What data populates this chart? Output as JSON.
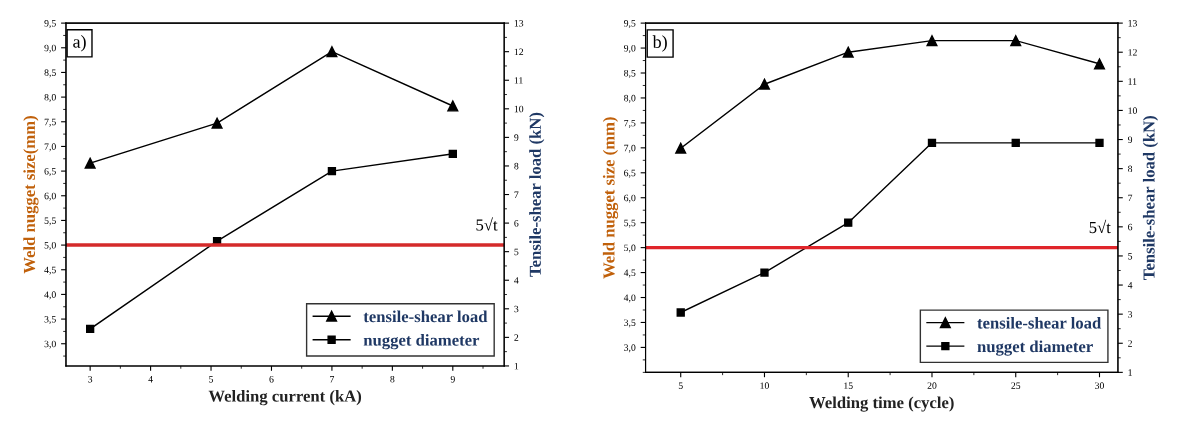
{
  "chart_data": [
    {
      "type": "line",
      "xlabel": "Welding current (kA)",
      "ylabel": "Weld nugget size(mm)",
      "y2label": "Tensile-shear load (kN)",
      "annotations": [
        "a)"
      ],
      "xlim": [
        2.6,
        9.85
      ],
      "xticks": [
        3,
        4,
        5,
        6,
        7,
        8,
        9
      ],
      "ylim": [
        2.55,
        9.5
      ],
      "yticks": [
        {
          "value": 3.0,
          "label": "3,0"
        },
        {
          "value": 3.5,
          "label": "3,5"
        },
        {
          "value": 4.0,
          "label": "4,0"
        },
        {
          "value": 4.5,
          "label": "4,5"
        },
        {
          "value": 5.0,
          "label": "5,0"
        },
        {
          "value": 5.5,
          "label": "5,5"
        },
        {
          "value": 6.0,
          "label": "6,0"
        },
        {
          "value": 6.5,
          "label": "6,5"
        },
        {
          "value": 7.0,
          "label": "7,0"
        },
        {
          "value": 7.5,
          "label": "7,5"
        },
        {
          "value": 8.0,
          "label": "8,0"
        },
        {
          "value": 8.5,
          "label": "8,5"
        },
        {
          "value": 9.0,
          "label": "9,0"
        },
        {
          "value": 9.5,
          "label": "9,5"
        }
      ],
      "y2lim": [
        1,
        13
      ],
      "y2ticks": [
        1,
        2,
        3,
        4,
        5,
        6,
        7,
        8,
        9,
        10,
        11,
        12,
        13
      ],
      "series": [
        {
          "name": "tensile-shear load",
          "color": "#000000",
          "axis": "y2",
          "marker": "triangle",
          "x": [
            3,
            5.1,
            7,
            9
          ],
          "values": [
            8.1,
            9.5,
            12.0,
            10.1
          ]
        },
        {
          "name": "nugget diameter",
          "color": "#000000",
          "marker": "square",
          "x": [
            3,
            5.1,
            7,
            9
          ],
          "values": [
            3.3,
            5.08,
            6.5,
            6.85
          ]
        }
      ],
      "ref_lines": [
        {
          "axis": "y",
          "value": 5.0,
          "label": "5√t",
          "color": "#d42a2a",
          "line_style": "solid"
        }
      ],
      "legend": "bottom right",
      "grid": false,
      "line_style": "solid"
    },
    {
      "type": "line",
      "xlabel": "Welding time (cycle)",
      "ylabel": "Weld nugget size (mm)",
      "y2label": "Tensile-shear load (kN)",
      "annotations": [
        "b)"
      ],
      "xlim": [
        2.9,
        31.1
      ],
      "xticks": [
        5,
        10,
        15,
        20,
        25,
        30
      ],
      "ylim": [
        2.5,
        9.5
      ],
      "yticks": [
        {
          "value": 3.0,
          "label": "3,0"
        },
        {
          "value": 3.5,
          "label": "3,5"
        },
        {
          "value": 4.0,
          "label": "4,0"
        },
        {
          "value": 4.5,
          "label": "4,5"
        },
        {
          "value": 5.0,
          "label": "5,0"
        },
        {
          "value": 5.5,
          "label": "5,5"
        },
        {
          "value": 6.0,
          "label": "6,0"
        },
        {
          "value": 6.5,
          "label": "6,5"
        },
        {
          "value": 7.0,
          "label": "7,0"
        },
        {
          "value": 7.5,
          "label": "7,5"
        },
        {
          "value": 8.0,
          "label": "8,0"
        },
        {
          "value": 8.5,
          "label": "8,5"
        },
        {
          "value": 9.0,
          "label": "9,0"
        },
        {
          "value": 9.5,
          "label": "9,5"
        }
      ],
      "y2lim": [
        1,
        13
      ],
      "y2ticks": [
        1,
        2,
        3,
        4,
        5,
        6,
        7,
        8,
        9,
        10,
        11,
        12,
        13
      ],
      "series": [
        {
          "name": "tensile-shear load",
          "color": "#000000",
          "axis": "y2",
          "marker": "triangle",
          "x": [
            5,
            10,
            15,
            20,
            25,
            30
          ],
          "values": [
            8.7,
            10.9,
            12.0,
            12.4,
            12.4,
            11.6
          ]
        },
        {
          "name": "nugget diameter",
          "color": "#000000",
          "marker": "square",
          "x": [
            5,
            10,
            15,
            20,
            25,
            30
          ],
          "values": [
            3.7,
            4.5,
            5.5,
            7.1,
            7.1,
            7.1
          ]
        }
      ],
      "ref_lines": [
        {
          "axis": "y",
          "value": 5.0,
          "label": "5√t",
          "color": "#e0252a",
          "line_style": "solid"
        }
      ],
      "legend": "bottom right",
      "grid": false,
      "line_style": "solid"
    }
  ]
}
